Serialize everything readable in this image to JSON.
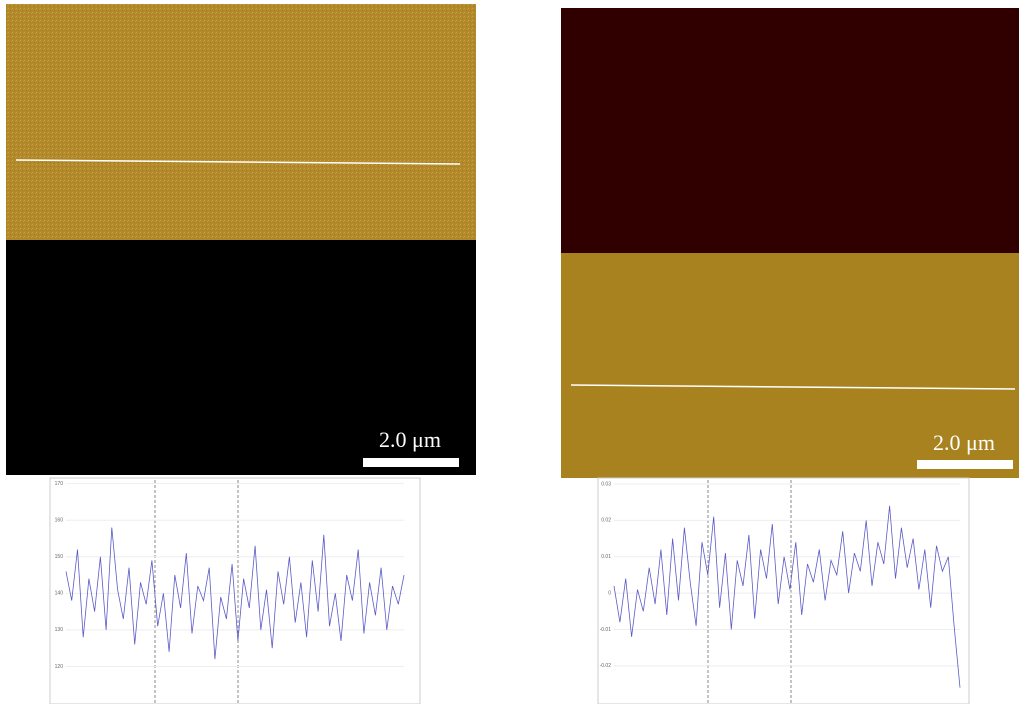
{
  "panels": [
    {
      "scale_bar": "2.0 μm",
      "profile": {
        "ylim": [
          110,
          171
        ],
        "yticks": [
          170,
          160,
          150,
          140,
          130,
          120
        ],
        "values": [
          146,
          138,
          152,
          128,
          144,
          135,
          150,
          130,
          158,
          141,
          133,
          147,
          126,
          143,
          137,
          149,
          131,
          140,
          124,
          145,
          136,
          151,
          129,
          142,
          138,
          147,
          122,
          139,
          133,
          148,
          127,
          144,
          136,
          153,
          130,
          141,
          125,
          146,
          137,
          150,
          132,
          143,
          128,
          149,
          135,
          156,
          131,
          140,
          127,
          145,
          138,
          152,
          129,
          143,
          134,
          147,
          130,
          142,
          137,
          145
        ]
      }
    },
    {
      "scale_bar": "2.0 μm",
      "profile": {
        "ylim": [
          -0.0302,
          0.0311
        ],
        "yticks": [
          0.03,
          0.02,
          0.01,
          0,
          -0.01,
          -0.02
        ],
        "values": [
          0.002,
          -0.008,
          0.004,
          -0.012,
          0.001,
          -0.005,
          0.007,
          -0.003,
          0.012,
          -0.006,
          0.015,
          -0.002,
          0.018,
          0.003,
          -0.009,
          0.014,
          0.005,
          0.021,
          -0.004,
          0.011,
          -0.01,
          0.009,
          0.002,
          0.016,
          -0.007,
          0.012,
          0.004,
          0.019,
          -0.003,
          0.01,
          0.001,
          0.014,
          -0.006,
          0.008,
          0.003,
          0.012,
          -0.002,
          0.009,
          0.005,
          0.017,
          0,
          0.011,
          0.006,
          0.02,
          0.002,
          0.014,
          0.008,
          0.024,
          0.004,
          0.018,
          0.007,
          0.015,
          0.001,
          0.012,
          -0.004,
          0.013,
          0.006,
          0.01,
          -0.009,
          -0.026
        ]
      }
    }
  ]
}
